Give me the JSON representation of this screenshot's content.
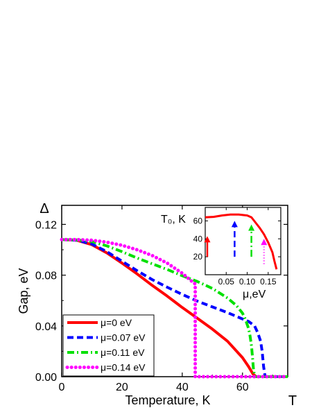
{
  "chart_data": [
    {
      "type": "line",
      "xlabel": "Temperature, K",
      "ylabel": "Gap, eV",
      "x_axis_end_label": "T",
      "y_axis_end_label": "Δ",
      "xlim": [
        0,
        75
      ],
      "ylim": [
        0,
        0.135
      ],
      "xticks": [
        0,
        20,
        40,
        60
      ],
      "xtick_labels": [
        "0",
        "20",
        "40",
        "60"
      ],
      "yticks": [
        0,
        0.04,
        0.08,
        0.12
      ],
      "ytick_labels": [
        "0.00",
        "0.04",
        "0.08",
        "0.12"
      ],
      "legend_position": "bottom-left",
      "series": [
        {
          "name": "μ=0 eV",
          "color": "#ff0000",
          "style": "solid",
          "x": [
            0,
            5,
            10,
            15,
            20,
            25,
            30,
            35,
            40,
            45,
            50,
            55,
            60,
            62,
            63.5,
            64.5
          ],
          "y": [
            0.108,
            0.1075,
            0.104,
            0.0975,
            0.0895,
            0.081,
            0.072,
            0.0635,
            0.0545,
            0.046,
            0.0375,
            0.028,
            0.015,
            0.008,
            0.002,
            0.0
          ]
        },
        {
          "name": "μ=0.07 eV",
          "color": "#0000ff",
          "style": "dashed",
          "x": [
            0,
            5,
            10,
            15,
            20,
            25,
            30,
            35,
            40,
            45,
            50,
            55,
            60,
            62,
            64,
            65,
            66,
            66.5,
            67,
            67.5,
            75
          ],
          "y": [
            0.108,
            0.1075,
            0.1045,
            0.0985,
            0.091,
            0.0835,
            0.0765,
            0.0705,
            0.0648,
            0.0595,
            0.055,
            0.0505,
            0.0455,
            0.0435,
            0.04,
            0.035,
            0.028,
            0.02,
            0.008,
            0.0,
            0.0
          ]
        },
        {
          "name": "μ=0.11 eV",
          "color": "#00e000",
          "style": "dash-dot",
          "x": [
            0,
            5,
            10,
            15,
            20,
            25,
            30,
            35,
            40,
            45,
            50,
            55,
            58,
            60,
            61,
            62,
            62.5,
            63,
            63.3,
            63.6,
            64,
            75
          ],
          "y": [
            0.108,
            0.1078,
            0.1065,
            0.103,
            0.0985,
            0.0935,
            0.089,
            0.0845,
            0.0795,
            0.075,
            0.0695,
            0.062,
            0.056,
            0.05,
            0.045,
            0.038,
            0.032,
            0.024,
            0.016,
            0.007,
            0.0,
            0.0
          ]
        },
        {
          "name": "μ=0.14 eV",
          "color": "#ff00ff",
          "style": "dotted",
          "x": [
            0,
            5,
            10,
            15,
            20,
            25,
            30,
            35,
            40,
            43,
            44.3,
            44.3,
            75
          ],
          "y": [
            0.108,
            0.108,
            0.1075,
            0.106,
            0.1035,
            0.1,
            0.0955,
            0.0895,
            0.0815,
            0.0755,
            0.073,
            0.0,
            0.0
          ]
        }
      ]
    },
    {
      "type": "line",
      "role": "inset",
      "title": "T₀, K",
      "xlabel": "μ,eV",
      "xlim": [
        0,
        0.18
      ],
      "ylim": [
        0,
        75
      ],
      "xticks": [
        0.05,
        0.1,
        0.15
      ],
      "xtick_labels": [
        "0.05",
        "0.10",
        "0.15"
      ],
      "yticks": [
        20,
        40,
        60
      ],
      "ytick_labels": [
        "20",
        "40",
        "60"
      ],
      "series": [
        {
          "color": "#ff0000",
          "style": "solid",
          "x": [
            0,
            0.02,
            0.04,
            0.06,
            0.08,
            0.1,
            0.11,
            0.12,
            0.13,
            0.14,
            0.15,
            0.16,
            0.165,
            0.17
          ],
          "y": [
            64,
            64.5,
            66,
            67,
            67,
            66,
            64,
            58,
            52,
            45,
            36,
            25,
            15,
            6
          ]
        }
      ],
      "arrows": [
        {
          "mu": 0.0,
          "color": "#ff0000",
          "style": "solid",
          "from": 20,
          "to": 43
        },
        {
          "mu": 0.07,
          "color": "#0000ff",
          "style": "dashed",
          "from": 20,
          "to": 60
        },
        {
          "mu": 0.11,
          "color": "#00e000",
          "style": "dash-dot",
          "from": 20,
          "to": 56
        },
        {
          "mu": 0.14,
          "color": "#ff00ff",
          "style": "dotted",
          "from": 12,
          "to": 40
        }
      ]
    }
  ]
}
